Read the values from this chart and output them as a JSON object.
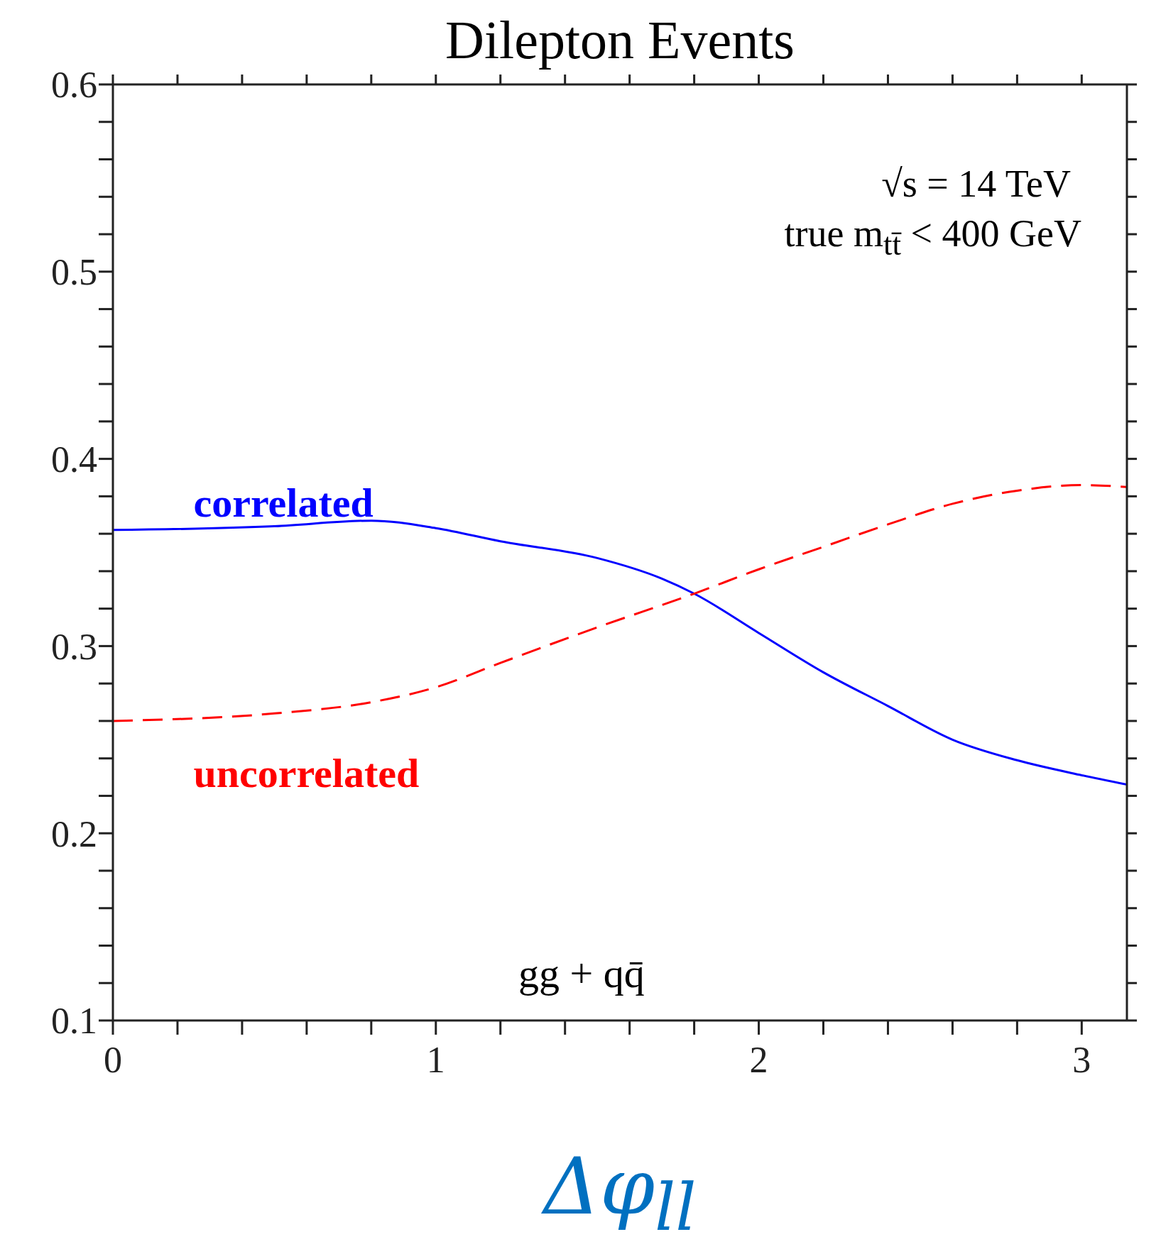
{
  "chart_data": {
    "type": "line",
    "title": "Dilepton Events",
    "xlabel": "Δφ$_{ll}$",
    "x": [
      0,
      0.5,
      0.8,
      1,
      1.2,
      1.5,
      1.7,
      1.8,
      2,
      2.2,
      2.4,
      2.6,
      2.8,
      3,
      3.14
    ],
    "series": [
      {
        "name": "correlated",
        "color": "#0000ff",
        "line_style": "solid",
        "values": [
          0.362,
          0.364,
          0.367,
          0.363,
          0.356,
          0.347,
          0.336,
          0.328,
          0.307,
          0.286,
          0.268,
          0.25,
          0.239,
          0.231,
          0.226
        ]
      },
      {
        "name": "uncorrelated",
        "color": "#ff0000",
        "line_style": "dashed",
        "x": [
          0,
          0.5,
          0.8,
          1,
          1.2,
          1.5,
          1.8,
          2,
          2.2,
          2.4,
          2.6,
          2.8,
          3,
          3.14
        ],
        "values": [
          0.26,
          0.264,
          0.27,
          0.278,
          0.291,
          0.31,
          0.328,
          0.341,
          0.353,
          0.365,
          0.376,
          0.383,
          0.386,
          0.385
        ]
      }
    ],
    "xlim": [
      0,
      3.14
    ],
    "xticks": [
      0,
      {
        "value": 0.2,
        "label": null
      },
      {
        "value": 0.4,
        "label": null
      },
      {
        "value": 0.6,
        "label": null
      },
      {
        "value": 0.8,
        "label": null
      },
      1,
      {
        "value": 1.2,
        "label": null
      },
      {
        "value": 1.4,
        "label": null
      },
      {
        "value": 1.6,
        "label": null
      },
      {
        "value": 1.8,
        "label": null
      },
      2,
      {
        "value": 2.2,
        "label": null
      },
      {
        "value": 2.4,
        "label": null
      },
      {
        "value": 2.6,
        "label": null
      },
      {
        "value": 2.8,
        "label": null
      },
      3
    ],
    "ylim": [
      0.1,
      0.6
    ],
    "yticks": [
      0.1,
      {
        "value": 0.12,
        "label": null
      },
      {
        "value": 0.14,
        "label": null
      },
      {
        "value": 0.16,
        "label": null
      },
      {
        "value": 0.18,
        "label": null
      },
      0.2,
      {
        "value": 0.22,
        "label": null
      },
      {
        "value": 0.24,
        "label": null
      },
      {
        "value": 0.26,
        "label": null
      },
      {
        "value": 0.28,
        "label": null
      },
      0.3,
      {
        "value": 0.32,
        "label": null
      },
      {
        "value": 0.34,
        "label": null
      },
      {
        "value": 0.36,
        "label": null
      },
      {
        "value": 0.38,
        "label": null
      },
      0.4,
      {
        "value": 0.42,
        "label": null
      },
      {
        "value": 0.44,
        "label": null
      },
      {
        "value": 0.46,
        "label": null
      },
      {
        "value": 0.48,
        "label": null
      },
      0.5,
      {
        "value": 0.52,
        "label": null
      },
      {
        "value": 0.54,
        "label": null
      },
      {
        "value": 0.56,
        "label": null
      },
      {
        "value": 0.58,
        "label": null
      },
      0.6
    ],
    "annotations": [
      "√s = 14 TeV",
      "true m$_{tt̄}$ < 400 GeV",
      "gg + qq̄"
    ],
    "legend": false,
    "marker": "none"
  }
}
